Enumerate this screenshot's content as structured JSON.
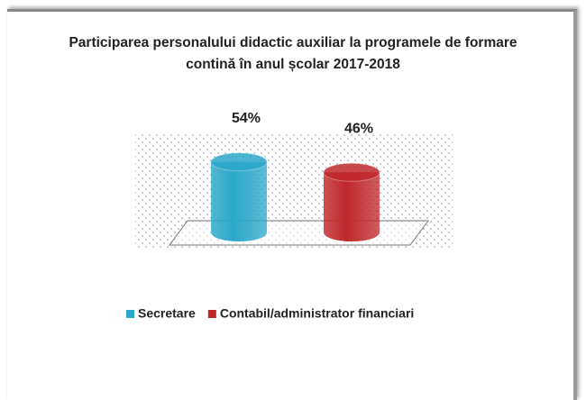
{
  "chart_data": {
    "type": "cylinder",
    "title": "Participarea personalului didactic auxiliar la programele de formare contină în anul școlar 2017-2018",
    "categories": [
      null
    ],
    "series": [
      {
        "name": "Secretare",
        "color": "#2aa7c9",
        "values": [
          54
        ],
        "value_labels": [
          "54%"
        ]
      },
      {
        "name": "Contabil/administrator financiari",
        "color": "#c0282a",
        "values": [
          46
        ],
        "value_labels": [
          "46%"
        ]
      }
    ],
    "legend": "bottom"
  }
}
